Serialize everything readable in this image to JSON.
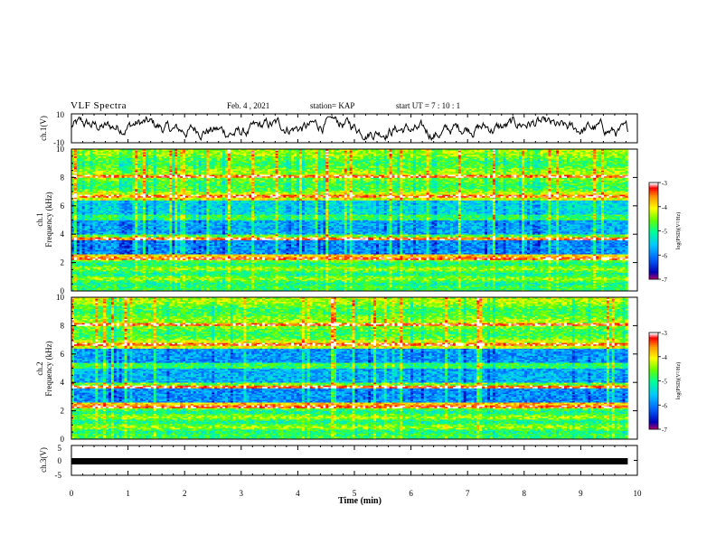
{
  "header": {
    "title": "VLF Spectra",
    "date": "Feb. 4 , 2021",
    "station": "station= KAP",
    "start": "start  UT =   7 : 10 : 1"
  },
  "colors": {
    "trace": "#000000",
    "colormap": [
      "#c80064",
      "#0000b4",
      "#0064ff",
      "#00c8ff",
      "#00ff96",
      "#64ff00",
      "#ffff00",
      "#ff9600",
      "#ff0000",
      "#ffffff"
    ]
  },
  "chart_data": [
    {
      "type": "line",
      "ylabel": "ch.1(V)",
      "ylim": [
        -10,
        10
      ],
      "yticks": [
        "10",
        "-10"
      ],
      "xlim": [
        0,
        10
      ],
      "x_data_end": 9.83
    },
    {
      "type": "heatmap",
      "ylabel": "ch.1\nFrequency (kHz)",
      "ylabel_top": "ch.1",
      "ylabel_bottom": "Frequency (kHz)",
      "ylim": [
        0,
        10
      ],
      "yticks": [
        "0",
        "2",
        "4",
        "6",
        "8",
        "10"
      ],
      "colorbar": {
        "label": "log(PSD)(V²/Hz)",
        "range": [
          -7,
          -3
        ],
        "ticks": [
          "-3",
          "-4",
          "-5",
          "-6",
          "-7"
        ]
      }
    },
    {
      "type": "heatmap",
      "ylabel": "ch.2\nFrequency (kHz)",
      "ylabel_top": "ch.2",
      "ylabel_bottom": "Frequency (kHz)",
      "ylim": [
        0,
        10
      ],
      "yticks": [
        "0",
        "2",
        "4",
        "6",
        "8",
        "10"
      ],
      "colorbar": {
        "label": "log(PSD)(V²/Hz)",
        "range": [
          -7,
          -3
        ],
        "ticks": [
          "-3",
          "-4",
          "-5",
          "-6",
          "-7"
        ]
      }
    },
    {
      "type": "line",
      "ylabel": "ch.3(V)",
      "ylim": [
        -5,
        5
      ],
      "yticks": [
        "5",
        "0",
        "-5"
      ],
      "xlim": [
        0,
        10
      ],
      "xlabel": "Time (min)",
      "xticks": [
        "0",
        "1",
        "2",
        "3",
        "4",
        "5",
        "6",
        "7",
        "8",
        "9",
        "10"
      ]
    }
  ]
}
